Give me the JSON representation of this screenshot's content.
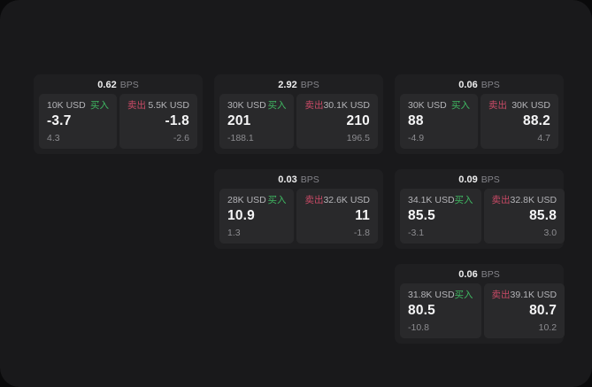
{
  "labels": {
    "bps_unit": "BPS",
    "buy": "买入",
    "sell": "卖出"
  },
  "colors": {
    "panel_background": "#19191b",
    "card_background": "#1f1f21",
    "cell_background": "#29292b",
    "buy_accent": "#3fb862",
    "sell_accent": "#c94a66"
  },
  "cards": [
    {
      "bps": "0.62",
      "buy": {
        "amount": "10K USD",
        "value": "-3.7",
        "change": "4.3"
      },
      "sell": {
        "amount": "5.5K USD",
        "value": "-1.8",
        "change": "-2.6"
      }
    },
    {
      "bps": "2.92",
      "buy": {
        "amount": "30K USD",
        "value": "201",
        "change": "-188.1"
      },
      "sell": {
        "amount": "30.1K USD",
        "value": "210",
        "change": "196.5"
      }
    },
    {
      "bps": "0.06",
      "buy": {
        "amount": "30K USD",
        "value": "88",
        "change": "-4.9"
      },
      "sell": {
        "amount": "30K USD",
        "value": "88.2",
        "change": "4.7"
      }
    },
    {
      "bps": "0.03",
      "buy": {
        "amount": "28K USD",
        "value": "10.9",
        "change": "1.3"
      },
      "sell": {
        "amount": "32.6K USD",
        "value": "11",
        "change": "-1.8"
      }
    },
    {
      "bps": "0.09",
      "buy": {
        "amount": "34.1K USD",
        "value": "85.5",
        "change": "-3.1"
      },
      "sell": {
        "amount": "32.8K USD",
        "value": "85.8",
        "change": "3.0"
      }
    },
    {
      "bps": "0.06",
      "buy": {
        "amount": "31.8K USD",
        "value": "80.5",
        "change": "-10.8"
      },
      "sell": {
        "amount": "39.1K USD",
        "value": "80.7",
        "change": "10.2"
      }
    }
  ]
}
